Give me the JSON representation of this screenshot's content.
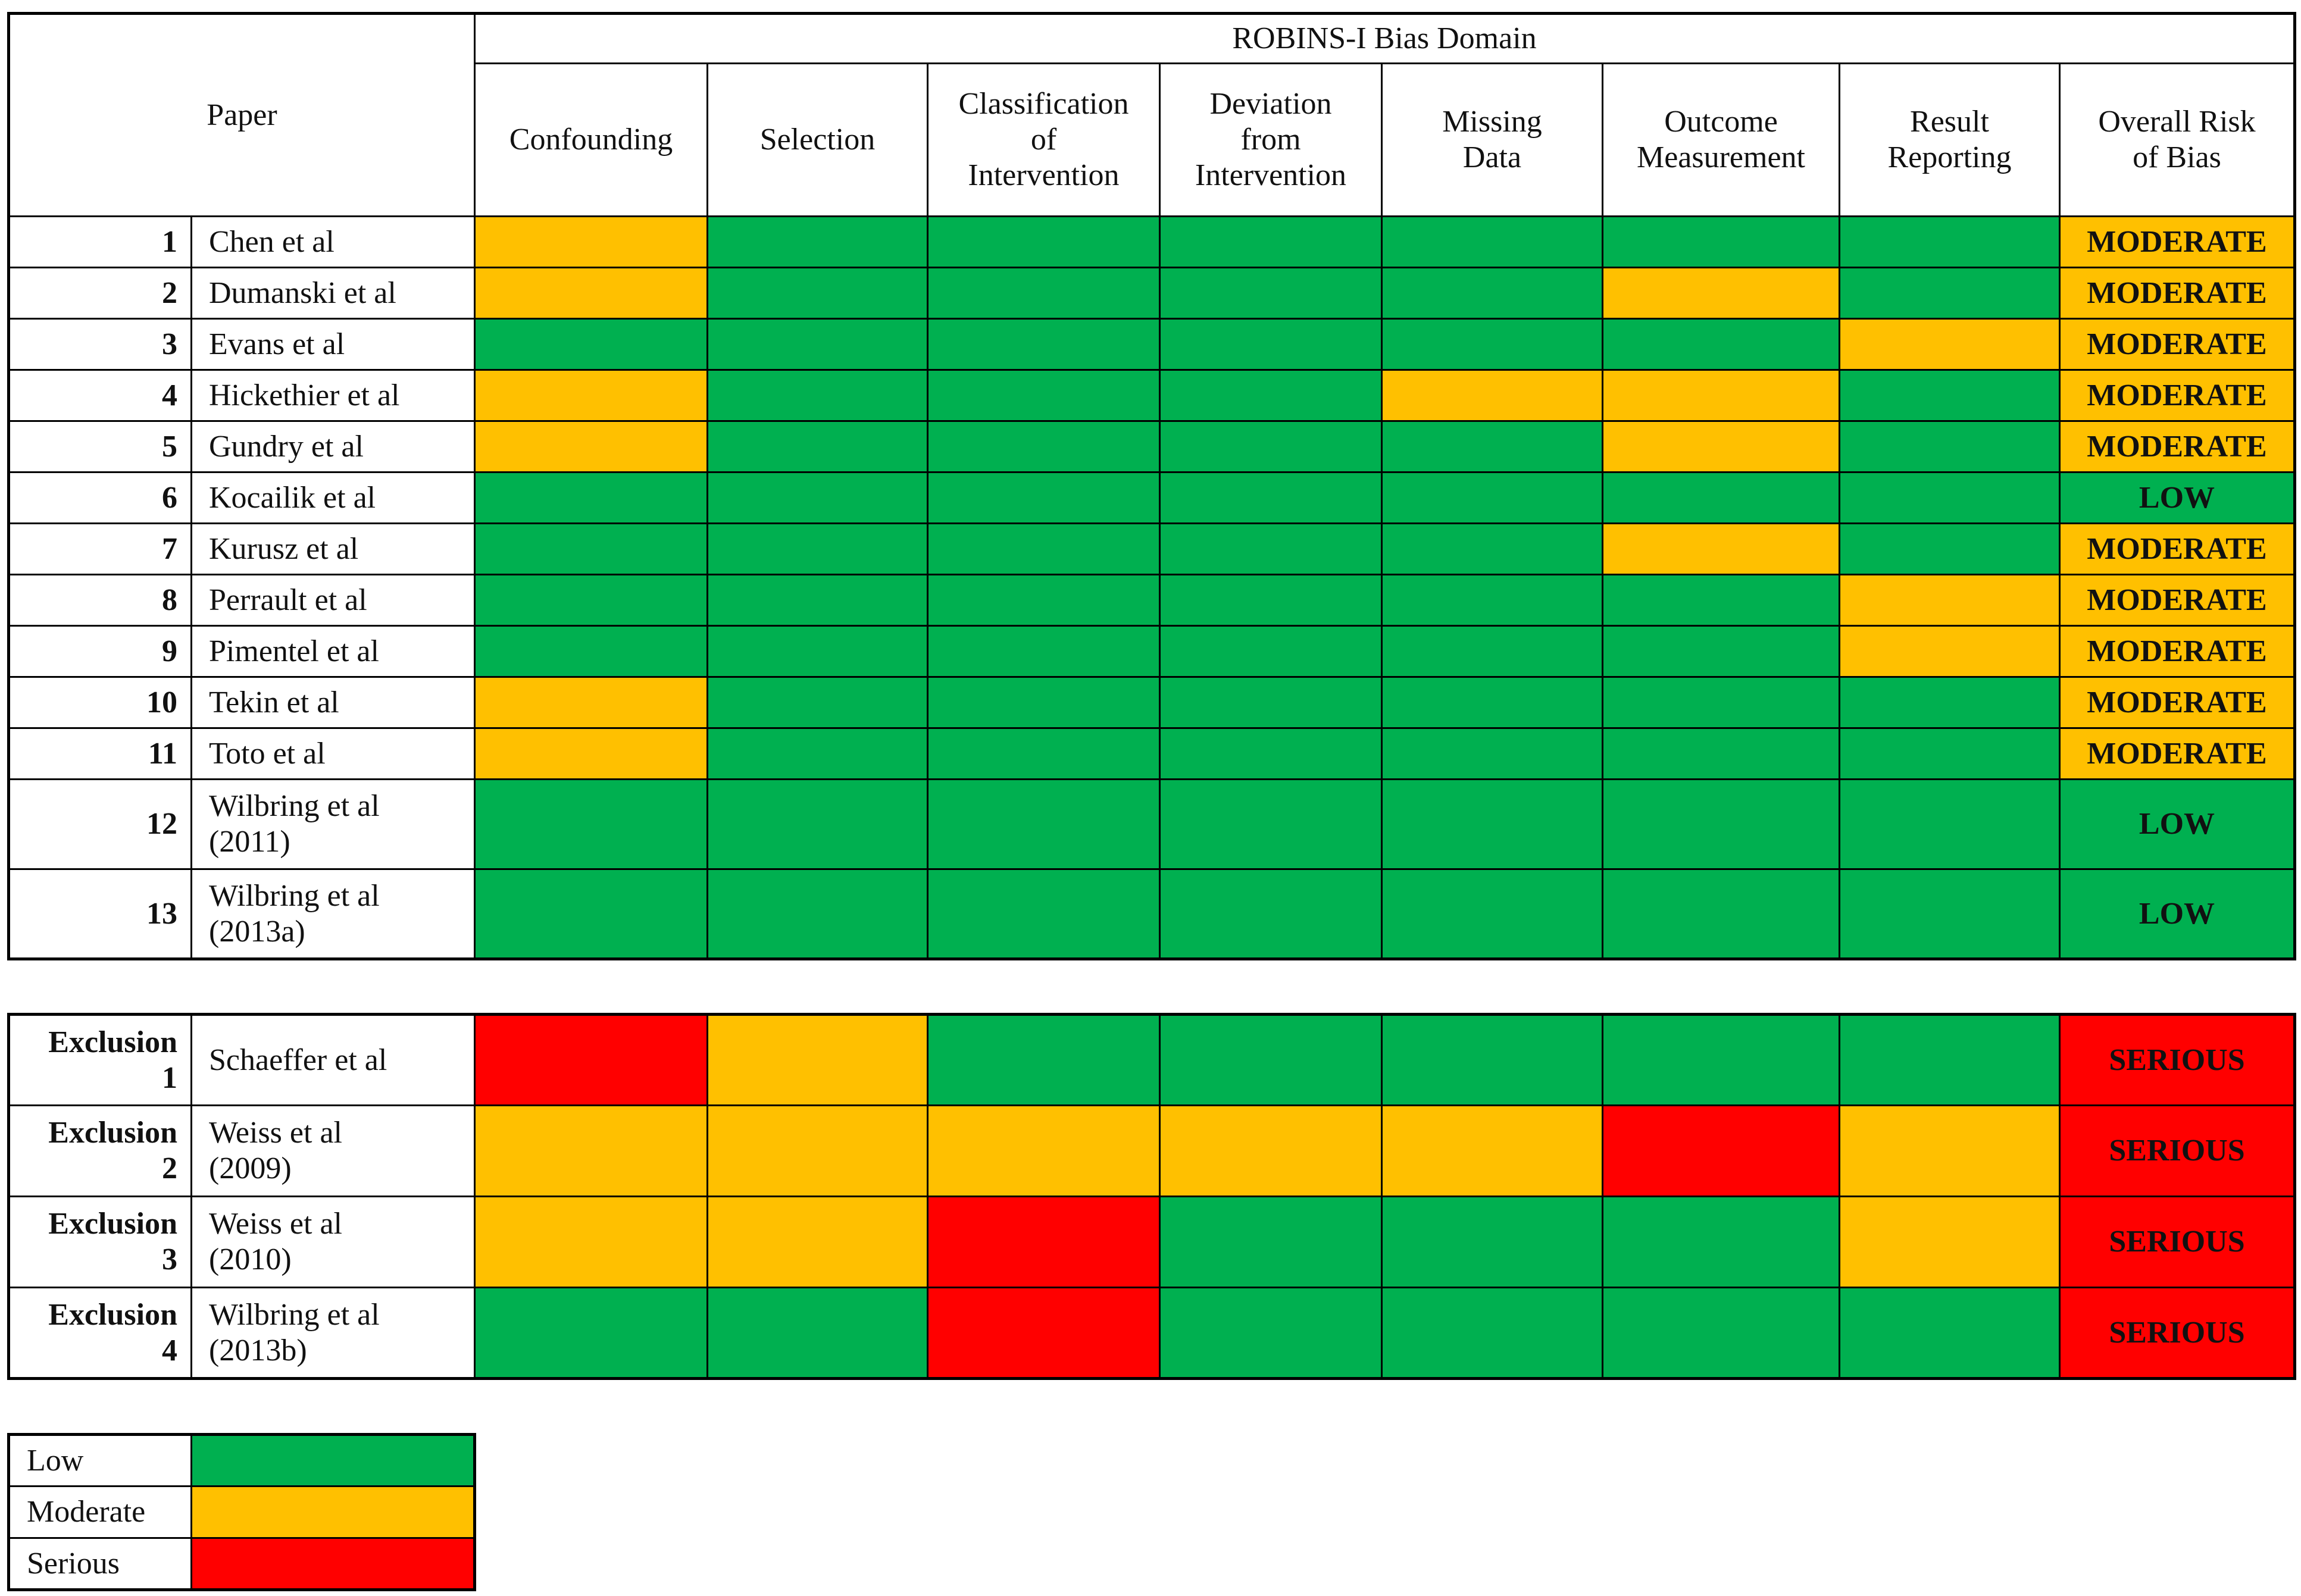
{
  "header": {
    "paper": "Paper",
    "domain": "ROBINS-I Bias Domain",
    "columns": [
      [
        "Confounding"
      ],
      [
        "Selection"
      ],
      [
        "Classification",
        "of",
        "Intervention"
      ],
      [
        "Deviation",
        "from",
        "Intervention"
      ],
      [
        "Missing",
        "Data"
      ],
      [
        "Outcome",
        "Measurement"
      ],
      [
        "Result",
        "Reporting"
      ],
      [
        "Overall Risk",
        "of Bias"
      ]
    ]
  },
  "included": [
    {
      "number": 1,
      "name": [
        "Chen et al"
      ],
      "cells": [
        "#ffc000",
        "#00b050",
        "#00b050",
        "#00b050",
        "#00b050",
        "#00b050",
        "#00b050",
        "#ffc000"
      ],
      "overall": "MODERATE"
    },
    {
      "number": 2,
      "name": [
        "Dumanski et al"
      ],
      "cells": [
        "#ffc000",
        "#00b050",
        "#00b050",
        "#00b050",
        "#00b050",
        "#ffc000",
        "#00b050",
        "#ffc000"
      ],
      "overall": "MODERATE"
    },
    {
      "number": 3,
      "name": [
        "Evans et al"
      ],
      "cells": [
        "#00b050",
        "#00b050",
        "#00b050",
        "#00b050",
        "#00b050",
        "#00b050",
        "#ffc000",
        "#ffc000"
      ],
      "overall": "MODERATE"
    },
    {
      "number": 4,
      "name": [
        "Hickethier et al"
      ],
      "cells": [
        "#ffc000",
        "#00b050",
        "#00b050",
        "#00b050",
        "#ffc000",
        "#ffc000",
        "#00b050",
        "#ffc000"
      ],
      "overall": "MODERATE"
    },
    {
      "number": 5,
      "name": [
        "Gundry et al"
      ],
      "cells": [
        "#ffc000",
        "#00b050",
        "#00b050",
        "#00b050",
        "#00b050",
        "#ffc000",
        "#00b050",
        "#ffc000"
      ],
      "overall": "MODERATE"
    },
    {
      "number": 6,
      "name": [
        "Kocailik et al"
      ],
      "cells": [
        "#00b050",
        "#00b050",
        "#00b050",
        "#00b050",
        "#00b050",
        "#00b050",
        "#00b050",
        "#00b050"
      ],
      "overall": "LOW"
    },
    {
      "number": 7,
      "name": [
        "Kurusz et al"
      ],
      "cells": [
        "#00b050",
        "#00b050",
        "#00b050",
        "#00b050",
        "#00b050",
        "#ffc000",
        "#00b050",
        "#ffc000"
      ],
      "overall": "MODERATE"
    },
    {
      "number": 8,
      "name": [
        "Perrault et al"
      ],
      "cells": [
        "#00b050",
        "#00b050",
        "#00b050",
        "#00b050",
        "#00b050",
        "#00b050",
        "#ffc000",
        "#ffc000"
      ],
      "overall": "MODERATE"
    },
    {
      "number": 9,
      "name": [
        "Pimentel et al"
      ],
      "cells": [
        "#00b050",
        "#00b050",
        "#00b050",
        "#00b050",
        "#00b050",
        "#00b050",
        "#ffc000",
        "#ffc000"
      ],
      "overall": "MODERATE"
    },
    {
      "number": 10,
      "name": [
        "Tekin et al"
      ],
      "cells": [
        "#ffc000",
        "#00b050",
        "#00b050",
        "#00b050",
        "#00b050",
        "#00b050",
        "#00b050",
        "#ffc000"
      ],
      "overall": "MODERATE"
    },
    {
      "number": 11,
      "name": [
        "Toto et al"
      ],
      "cells": [
        "#ffc000",
        "#00b050",
        "#00b050",
        "#00b050",
        "#00b050",
        "#00b050",
        "#00b050",
        "#ffc000"
      ],
      "overall": "MODERATE"
    },
    {
      "number": 12,
      "name": [
        "Wilbring et al",
        "(2011)"
      ],
      "cells": [
        "#00b050",
        "#00b050",
        "#00b050",
        "#00b050",
        "#00b050",
        "#00b050",
        "#00b050",
        "#00b050"
      ],
      "overall": "LOW"
    },
    {
      "number": 13,
      "name": [
        "Wilbring et al",
        "(2013a)"
      ],
      "cells": [
        "#00b050",
        "#00b050",
        "#00b050",
        "#00b050",
        "#00b050",
        "#00b050",
        "#00b050",
        "#00b050"
      ],
      "overall": "LOW"
    }
  ],
  "excluded": [
    {
      "label": "Exclusion",
      "number": 1,
      "name": [
        "Schaeffer et al"
      ],
      "cells": [
        "#ff0000",
        "#ffc000",
        "#00b050",
        "#00b050",
        "#00b050",
        "#00b050",
        "#00b050",
        "#ff0000"
      ],
      "overall": "SERIOUS"
    },
    {
      "label": "Exclusion",
      "number": 2,
      "name": [
        "Weiss et al",
        "(2009)"
      ],
      "cells": [
        "#ffc000",
        "#ffc000",
        "#ffc000",
        "#ffc000",
        "#ffc000",
        "#ff0000",
        "#ffc000",
        "#ff0000"
      ],
      "overall": "SERIOUS"
    },
    {
      "label": "Exclusion",
      "number": 3,
      "name": [
        "Weiss et al",
        "(2010)"
      ],
      "cells": [
        "#ffc000",
        "#ffc000",
        "#ff0000",
        "#00b050",
        "#00b050",
        "#00b050",
        "#ffc000",
        "#ff0000"
      ],
      "overall": "SERIOUS"
    },
    {
      "label": "Exclusion",
      "number": 4,
      "name": [
        "Wilbring et al",
        "(2013b)"
      ],
      "cells": [
        "#00b050",
        "#00b050",
        "#ff0000",
        "#00b050",
        "#00b050",
        "#00b050",
        "#00b050",
        "#ff0000"
      ],
      "overall": "SERIOUS"
    }
  ],
  "legend": [
    {
      "label": "Low",
      "color": "#00b050"
    },
    {
      "label": "Moderate",
      "color": "#ffc000"
    },
    {
      "label": "Serious",
      "color": "#ff0000"
    }
  ]
}
